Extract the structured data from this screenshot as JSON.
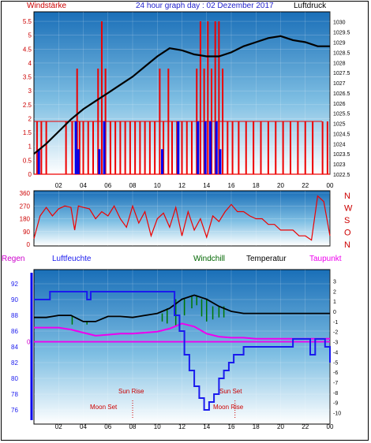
{
  "header": {
    "wind_label": "Windstärke",
    "title": "24 hour graph day : 02 Dezember 2017",
    "pressure_label": "Luftdruck"
  },
  "legend": {
    "regen": {
      "label": "Regen",
      "color": "#cc00cc"
    },
    "humidity": {
      "label": "Luftfeuchte",
      "color": "#1a1aee"
    },
    "windchill": {
      "label": "Windchill",
      "color": "#006600"
    },
    "temperature": {
      "label": "Temperatur",
      "color": "#000000"
    },
    "dewpoint": {
      "label": "Taupunkt",
      "color": "#ee00ee"
    }
  },
  "annotations": {
    "sun_rise": "Sun Rise",
    "sun_set": "Sun Set",
    "moon_set": "Moon Set",
    "moon_rise": "Moon Rise"
  },
  "colors": {
    "wind": "#ee0000",
    "wind_gust": "#0000ee",
    "pressure": "#000000",
    "direction": "#ee0000",
    "axis_left": "#0000ee"
  },
  "chart_data": [
    {
      "type": "bar",
      "name_key": "wind",
      "x_ticks": [
        "02",
        "04",
        "06",
        "08",
        "10",
        "12",
        "14",
        "16",
        "18",
        "20",
        "22",
        "00"
      ],
      "xlim": [
        0,
        24
      ],
      "left_axis": {
        "ticks": [
          "0",
          "0.5",
          "1",
          "1.5",
          "2",
          "2.5",
          "3",
          "3.5",
          "4",
          "4.5",
          "5",
          "5.5"
        ],
        "ylim": [
          0,
          5.7
        ]
      },
      "right_axis": {
        "ticks": [
          "1022.5",
          "1023",
          "1023.5",
          "1024",
          "1024.5",
          "1025",
          "1025.5",
          "1026",
          "1026.5",
          "1027",
          "1027.5",
          "1028",
          "1028.5",
          "1029",
          "1029.5",
          "1030"
        ],
        "ylim": [
          1022.5,
          1030.3
        ]
      },
      "pressure": {
        "x": [
          0,
          1,
          2,
          3,
          4,
          5,
          6,
          7,
          8,
          9,
          10,
          11,
          12,
          13,
          14,
          15,
          16,
          17,
          18,
          19,
          20,
          21,
          22,
          23,
          24
        ],
        "y": [
          1023.5,
          1024.0,
          1024.6,
          1025.2,
          1025.7,
          1026.1,
          1026.5,
          1026.9,
          1027.3,
          1027.8,
          1028.3,
          1028.7,
          1028.6,
          1028.4,
          1028.3,
          1028.3,
          1028.5,
          1028.8,
          1029.0,
          1029.2,
          1029.3,
          1029.1,
          1029.0,
          1028.8,
          1028.8
        ]
      },
      "wind_bars": [
        {
          "x": 0.25,
          "v": 1.9
        },
        {
          "x": 0.6,
          "v": 1.9
        },
        {
          "x": 1.0,
          "v": 1.9
        },
        {
          "x": 2.6,
          "v": 1.9
        },
        {
          "x": 3.1,
          "v": 1.9
        },
        {
          "x": 3.5,
          "v": 3.8
        },
        {
          "x": 3.7,
          "v": 1.9
        },
        {
          "x": 4.0,
          "v": 1.9
        },
        {
          "x": 4.4,
          "v": 1.9
        },
        {
          "x": 4.8,
          "v": 1.9
        },
        {
          "x": 5.2,
          "v": 3.8
        },
        {
          "x": 5.5,
          "v": 5.5
        },
        {
          "x": 5.8,
          "v": 3.8
        },
        {
          "x": 6.2,
          "v": 1.9
        },
        {
          "x": 6.6,
          "v": 1.9
        },
        {
          "x": 7.0,
          "v": 1.9
        },
        {
          "x": 7.4,
          "v": 1.9
        },
        {
          "x": 7.8,
          "v": 1.9
        },
        {
          "x": 8.2,
          "v": 1.9
        },
        {
          "x": 8.6,
          "v": 1.9
        },
        {
          "x": 9.0,
          "v": 1.9
        },
        {
          "x": 9.4,
          "v": 1.9
        },
        {
          "x": 9.8,
          "v": 1.9
        },
        {
          "x": 10.2,
          "v": 3.8
        },
        {
          "x": 10.5,
          "v": 1.9
        },
        {
          "x": 10.9,
          "v": 3.8
        },
        {
          "x": 11.2,
          "v": 1.9
        },
        {
          "x": 11.6,
          "v": 1.9
        },
        {
          "x": 12.0,
          "v": 1.9
        },
        {
          "x": 12.4,
          "v": 1.9
        },
        {
          "x": 12.8,
          "v": 1.9
        },
        {
          "x": 13.2,
          "v": 3.8
        },
        {
          "x": 13.5,
          "v": 5.5
        },
        {
          "x": 13.8,
          "v": 3.8
        },
        {
          "x": 14.1,
          "v": 5.5
        },
        {
          "x": 14.4,
          "v": 3.8
        },
        {
          "x": 14.7,
          "v": 5.5
        },
        {
          "x": 15.0,
          "v": 5.5
        },
        {
          "x": 15.3,
          "v": 3.8
        },
        {
          "x": 15.7,
          "v": 1.9
        },
        {
          "x": 16.1,
          "v": 1.9
        },
        {
          "x": 16.6,
          "v": 1.9
        },
        {
          "x": 17.2,
          "v": 1.9
        },
        {
          "x": 17.8,
          "v": 1.9
        },
        {
          "x": 18.4,
          "v": 1.9
        },
        {
          "x": 19.0,
          "v": 1.9
        },
        {
          "x": 19.6,
          "v": 1.9
        },
        {
          "x": 20.2,
          "v": 1.9
        },
        {
          "x": 20.8,
          "v": 1.9
        },
        {
          "x": 21.4,
          "v": 1.9
        },
        {
          "x": 22.0,
          "v": 1.9
        },
        {
          "x": 22.6,
          "v": 1.9
        },
        {
          "x": 23.4,
          "v": 1.9
        },
        {
          "x": 23.8,
          "v": 1.9
        }
      ],
      "gust_bars": [
        {
          "x": 0.4,
          "v": 0.9
        },
        {
          "x": 3.4,
          "v": 1.9
        },
        {
          "x": 3.6,
          "v": 0.9
        },
        {
          "x": 5.3,
          "v": 0.9
        },
        {
          "x": 5.7,
          "v": 1.9
        },
        {
          "x": 10.4,
          "v": 0.9
        },
        {
          "x": 11.7,
          "v": 1.9
        },
        {
          "x": 13.3,
          "v": 1.9
        },
        {
          "x": 13.9,
          "v": 1.9
        },
        {
          "x": 14.3,
          "v": 1.9
        },
        {
          "x": 14.8,
          "v": 1.9
        },
        {
          "x": 15.1,
          "v": 0.9
        }
      ]
    },
    {
      "type": "line",
      "name_key": "direction",
      "x_ticks": [
        "02",
        "04",
        "06",
        "08",
        "10",
        "12",
        "14",
        "16",
        "18",
        "20",
        "22",
        "00"
      ],
      "xlim": [
        0,
        24
      ],
      "left_axis": {
        "ticks": [
          "0",
          "90",
          "180",
          "270",
          "360"
        ],
        "ylim": [
          0,
          360
        ]
      },
      "right_axis_labels": [
        "N",
        "W",
        "S",
        "O",
        "N"
      ],
      "x": [
        0,
        0.5,
        1,
        1.5,
        2,
        2.5,
        3,
        3.3,
        3.6,
        4,
        4.5,
        5,
        5.5,
        6,
        6.5,
        7,
        7.5,
        8,
        8.5,
        9,
        9.5,
        10,
        10.5,
        11,
        11.5,
        12,
        12.5,
        13,
        13.5,
        14,
        14.5,
        15,
        15.5,
        16,
        16.5,
        17,
        17.5,
        18,
        18.5,
        19,
        19.5,
        20,
        20.5,
        21,
        21.5,
        22,
        22.5,
        23,
        23.5,
        24
      ],
      "y": [
        40,
        200,
        260,
        200,
        250,
        270,
        260,
        100,
        270,
        260,
        250,
        180,
        230,
        200,
        270,
        180,
        120,
        270,
        150,
        230,
        60,
        180,
        220,
        120,
        260,
        60,
        230,
        100,
        180,
        50,
        200,
        160,
        230,
        280,
        230,
        230,
        200,
        180,
        180,
        140,
        140,
        100,
        100,
        100,
        60,
        60,
        30,
        340,
        300,
        60
      ]
    },
    {
      "type": "line",
      "name_key": "humidity_temperature",
      "x_ticks": [
        "02",
        "04",
        "06",
        "08",
        "10",
        "12",
        "14",
        "16",
        "18",
        "20",
        "22",
        "00"
      ],
      "xlim": [
        0,
        24
      ],
      "left_axis": {
        "ticks": [
          "76",
          "78",
          "80",
          "82",
          "84",
          "86",
          "88",
          "90",
          "92"
        ],
        "ylim": [
          75,
          93
        ]
      },
      "rain_axis": {
        "ticks": [
          "0"
        ]
      },
      "right_axis": {
        "ticks": [
          "3",
          "2",
          "1",
          "0",
          "-1",
          "-2",
          "-3",
          "-4",
          "-5",
          "-6",
          "-7",
          "-8",
          "-9",
          "-10"
        ],
        "ylim": [
          -10.5,
          3.5
        ]
      },
      "humidity": {
        "x": [
          0,
          1,
          1.3,
          4,
          4.3,
          4.6,
          5,
          11,
          11.4,
          11.8,
          12.2,
          12.6,
          13,
          13.4,
          13.8,
          14.2,
          14.6,
          15,
          15.4,
          15.8,
          16.2,
          16.6,
          17,
          18,
          19,
          20,
          21,
          22,
          22.4,
          22.8,
          23.2,
          23.6,
          24
        ],
        "y": [
          90,
          90,
          91,
          91,
          90,
          91,
          91,
          91,
          88,
          86,
          83,
          81,
          79,
          77.5,
          76,
          77,
          78,
          80,
          81,
          82,
          83,
          83,
          84,
          84,
          84,
          84,
          85,
          85,
          83,
          85,
          85,
          84,
          82
        ]
      },
      "temperature": {
        "x": [
          0,
          1,
          2,
          3,
          4,
          5,
          6,
          7,
          8,
          9,
          10,
          11,
          12,
          13,
          14,
          15,
          16,
          17,
          18,
          19,
          20,
          21,
          22,
          23,
          24
        ],
        "y": [
          -0.6,
          -0.6,
          -0.4,
          -0.4,
          -1.0,
          -1.0,
          -0.5,
          -0.5,
          -0.6,
          -0.4,
          -0.2,
          0.3,
          1.2,
          1.6,
          1.2,
          0.5,
          0.0,
          -0.2,
          -0.2,
          -0.2,
          -0.2,
          -0.2,
          -0.2,
          -0.2,
          -0.2
        ]
      },
      "dewpoint": {
        "x": [
          0,
          1,
          2,
          3,
          4,
          5,
          6,
          7,
          8,
          9,
          10,
          11,
          12,
          13,
          14,
          15,
          16,
          17,
          18,
          19,
          20,
          21,
          22,
          23,
          24
        ],
        "y": [
          -1.6,
          -1.6,
          -1.6,
          -1.8,
          -2.1,
          -2.4,
          -2.3,
          -2.2,
          -2.2,
          -2.1,
          -2.0,
          -1.7,
          -1.2,
          -1.5,
          -2.2,
          -2.5,
          -2.6,
          -2.6,
          -2.7,
          -2.7,
          -2.7,
          -2.7,
          -2.7,
          -2.7,
          -2.7
        ]
      },
      "windchill": {
        "x": [
          3.1,
          4.3,
          10.4,
          10.8,
          11.5,
          12.2,
          12.8,
          13.2,
          13.6,
          14.0,
          14.5,
          15.0,
          15.4
        ],
        "y": [
          -1.3,
          -1.3,
          -1.0,
          -1.2,
          -1.4,
          -0.4,
          0.3,
          0.6,
          -0.5,
          -1.0,
          -0.8,
          -0.6,
          -0.6
        ]
      },
      "rain": {
        "value": 0
      }
    }
  ]
}
